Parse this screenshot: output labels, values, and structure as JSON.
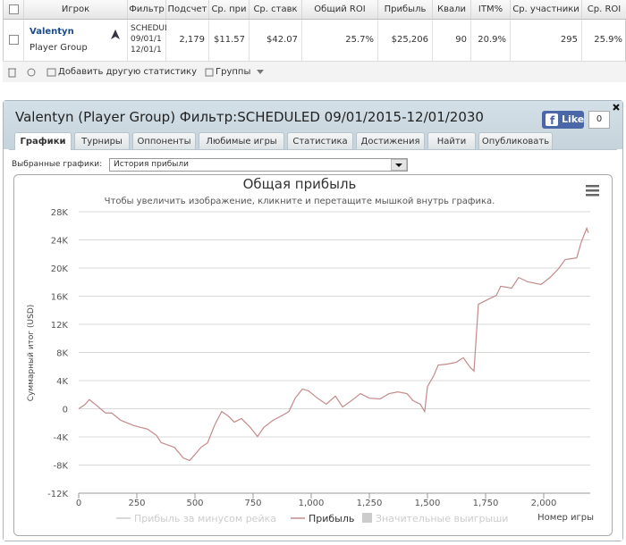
{
  "table": {
    "headers": [
      "Игрок",
      "Фильтр",
      "Подсчет",
      "Ср. при",
      "Ср. ставк",
      "Общий ROI",
      "Прибыль",
      "Квали",
      "ITM%",
      "Ср. участники",
      "Ср. ROI"
    ],
    "row": {
      "player_name": "Valentyn",
      "player_group": "Player Group",
      "filter": [
        "SCHEDULI",
        "09/01/1",
        "12/01/1"
      ],
      "cells": [
        "2,179",
        "$11.57",
        "$42.07",
        "25.7%",
        "$25,206",
        "90",
        "20.9%",
        "295",
        "25.9%"
      ]
    }
  },
  "toolbar": {
    "add_stats": "Добавить другую статистику",
    "groups": "Группы"
  },
  "panel": {
    "title": "Valentyn (Player Group) Фильтр:SCHEDULED 09/01/2015-12/01/2030",
    "like": "Like",
    "like_count": "0",
    "tabs": [
      "Графики",
      "Турниры",
      "Оппоненты",
      "Любимые игры",
      "Статистика",
      "Достижения",
      "Найти",
      "Опубликовать"
    ],
    "select_label": "Выбранные графики:",
    "select_value": "История прибыли"
  },
  "chart_data": {
    "type": "line",
    "title": "Общая прибыль",
    "subtitle": "Чтобы увеличить изображение, кликните и перетащите мышкой внутрь графика.",
    "ylabel": "Суммарный итог (USD)",
    "xlabel": "Номер игры",
    "x": [
      0,
      27,
      46,
      85,
      115,
      142,
      181,
      238,
      296,
      335,
      354,
      412,
      450,
      477,
      500,
      527,
      554,
      585,
      615,
      642,
      669,
      700,
      738,
      769,
      796,
      835,
      873,
      904,
      931,
      962,
      988,
      1027,
      1065,
      1104,
      1135,
      1173,
      1212,
      1250,
      1296,
      1335,
      1373,
      1412,
      1438,
      1469,
      1488,
      1500,
      1527,
      1546,
      1585,
      1623,
      1654,
      1681,
      1700,
      1719,
      1758,
      1796,
      1815,
      1862,
      1892,
      1931,
      1988,
      2027,
      2065,
      2092,
      2142,
      2162,
      2185,
      2192
    ],
    "series": [
      {
        "name": "Прибыль за минусом рейка",
        "color": "#cccccc",
        "visible": false
      },
      {
        "name": "Прибыль",
        "color": "#c48a8a",
        "visible": true,
        "values": [
          0,
          600,
          1300,
          250,
          -600,
          -600,
          -1650,
          -2400,
          -2900,
          -3800,
          -4800,
          -5500,
          -7000,
          -7350,
          -6500,
          -5450,
          -4850,
          -2300,
          -400,
          -1000,
          -1900,
          -1400,
          -2650,
          -3950,
          -2650,
          -1650,
          -1000,
          -400,
          1500,
          2800,
          2550,
          1500,
          650,
          1800,
          250,
          1150,
          2150,
          1500,
          1400,
          2150,
          2400,
          2150,
          1150,
          650,
          -400,
          3150,
          4700,
          6200,
          6350,
          6600,
          7250,
          6000,
          5350,
          14850,
          15500,
          16100,
          17400,
          17150,
          18650,
          18050,
          17650,
          18650,
          19950,
          21200,
          21450,
          23750,
          25650,
          25000
        ]
      },
      {
        "name": "Значительные выигрыши",
        "color": "#cccccc",
        "visible": false
      }
    ],
    "xlim": [
      0,
      2200
    ],
    "xticks": [
      0,
      250,
      500,
      750,
      {
        "value": 1000,
        "label": "1,000"
      },
      {
        "value": 1250,
        "label": "1,250"
      },
      {
        "value": 1500,
        "label": "1,500"
      },
      {
        "value": 1750,
        "label": "1,750"
      },
      {
        "value": 2000,
        "label": "2,000"
      }
    ],
    "ylim": [
      -12000,
      28000
    ],
    "yticks": [
      {
        "value": -12000,
        "label": "-12K"
      },
      {
        "value": -8000,
        "label": "-8K"
      },
      {
        "value": -4000,
        "label": "-4K"
      },
      0,
      {
        "value": 4000,
        "label": "4K"
      },
      {
        "value": 8000,
        "label": "8K"
      },
      {
        "value": 12000,
        "label": "12K"
      },
      {
        "value": 16000,
        "label": "16K"
      },
      {
        "value": 20000,
        "label": "20K"
      },
      {
        "value": 24000,
        "label": "24K"
      },
      {
        "value": 28000,
        "label": "28K"
      }
    ],
    "grid": true
  }
}
